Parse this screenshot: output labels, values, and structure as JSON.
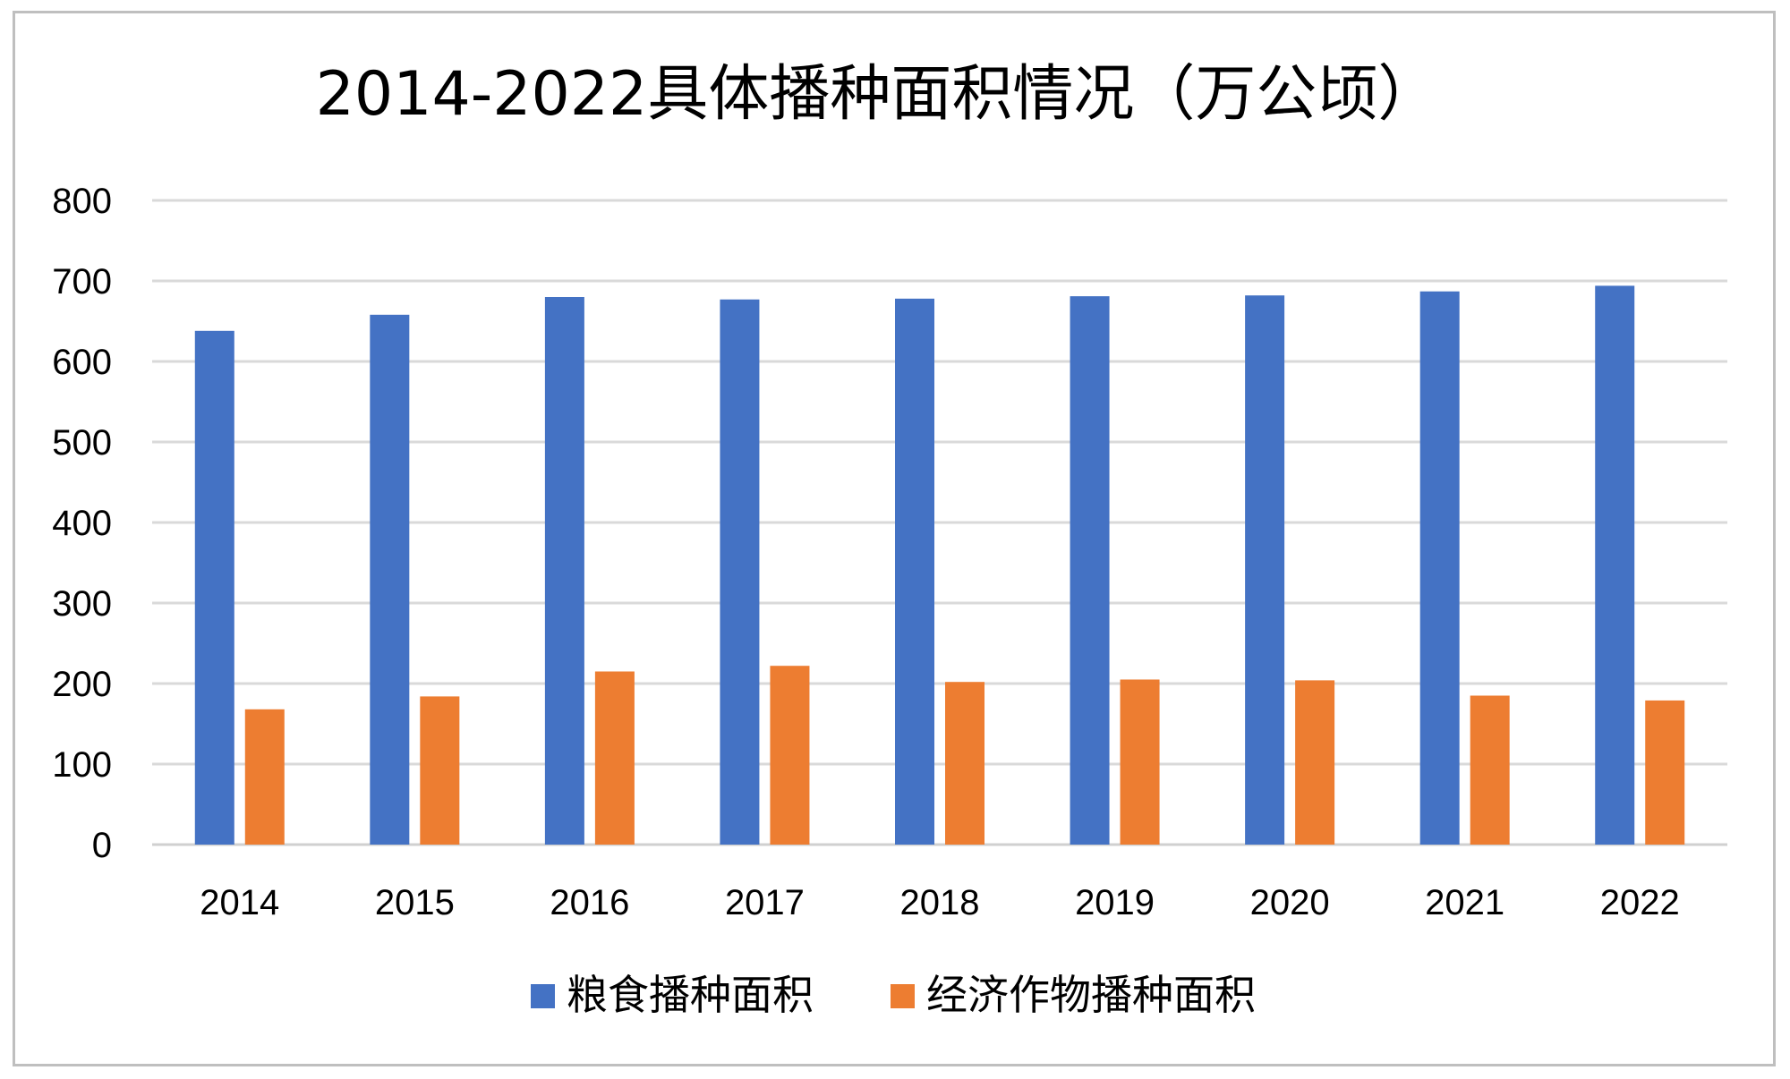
{
  "chart_data": {
    "type": "bar",
    "title": "2014-2022具体播种面积情况（万公顷）",
    "xlabel": "",
    "ylabel": "",
    "categories": [
      "2014",
      "2015",
      "2016",
      "2017",
      "2018",
      "2019",
      "2020",
      "2021",
      "2022"
    ],
    "series": [
      {
        "name": "粮食播种面积",
        "color": "#4472C4",
        "values": [
          638,
          658,
          680,
          677,
          678,
          681,
          682,
          687,
          694
        ]
      },
      {
        "name": "经济作物播种面积",
        "color": "#ED7D31",
        "values": [
          168,
          184,
          215,
          222,
          202,
          205,
          204,
          185,
          179
        ]
      }
    ],
    "ylim": [
      0,
      800
    ],
    "yticks": [
      0,
      100,
      200,
      300,
      400,
      500,
      600,
      700,
      800
    ],
    "grid": true,
    "legend": "bottom-center"
  }
}
